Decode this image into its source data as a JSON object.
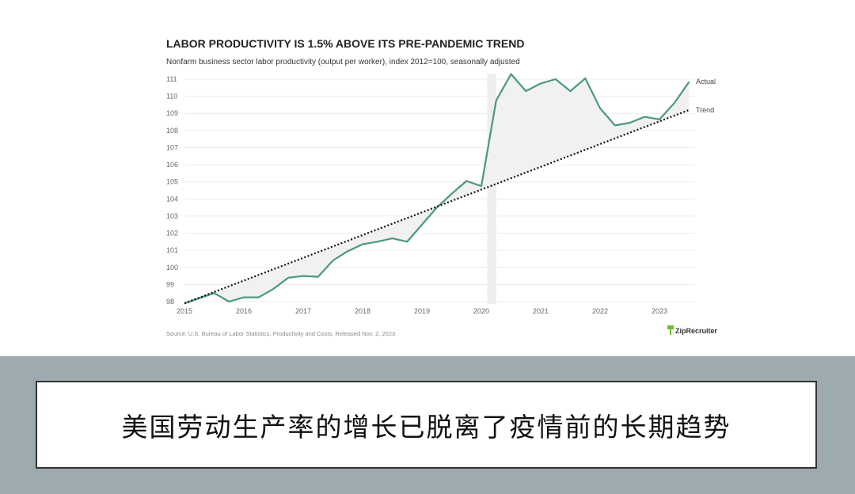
{
  "chart_data": {
    "type": "line",
    "title": "LABOR PRODUCTIVITY IS 1.5% ABOVE ITS PRE-PANDEMIC TREND",
    "subtitle": "Nonfarm business sector labor productivity (output per worker), index 2012=100, seasonally adjusted",
    "ylim": [
      98,
      111
    ],
    "yticks": [
      "98",
      "99",
      "100",
      "101",
      "102",
      "103",
      "104",
      "105",
      "106",
      "107",
      "108",
      "109",
      "110",
      "111"
    ],
    "xlim": [
      2015,
      2023.6
    ],
    "xticks": [
      "2015",
      "2016",
      "2017",
      "2018",
      "2019",
      "2020",
      "2021",
      "2022",
      "2023"
    ],
    "grid": true,
    "shaded_region": [
      2020.1,
      2020.25
    ],
    "series": [
      {
        "name": "Actual",
        "color": "#4a9a7c",
        "style": "solid",
        "x": [
          2015,
          2015.25,
          2015.5,
          2015.75,
          2016,
          2016.25,
          2016.5,
          2016.75,
          2017,
          2017.25,
          2017.5,
          2017.75,
          2018,
          2018.25,
          2018.5,
          2018.75,
          2019,
          2019.25,
          2019.5,
          2019.75,
          2020,
          2020.25,
          2020.5,
          2020.75,
          2021,
          2021.25,
          2021.5,
          2021.75,
          2022,
          2022.25,
          2022.5,
          2022.75,
          2023,
          2023.25,
          2023.5
        ],
        "values": [
          97.9,
          98.2,
          98.5,
          98.0,
          98.25,
          98.25,
          98.75,
          99.4,
          99.5,
          99.45,
          100.4,
          100.95,
          101.35,
          101.5,
          101.7,
          101.5,
          102.5,
          103.5,
          104.3,
          105.05,
          104.75,
          109.75,
          111.3,
          110.3,
          110.75,
          111.0,
          110.3,
          111.05,
          109.3,
          108.3,
          108.45,
          108.8,
          108.65,
          109.6,
          110.85
        ]
      },
      {
        "name": "Trend",
        "color": "#111111",
        "style": "dotted",
        "x": [
          2015,
          2023.5
        ],
        "values": [
          97.9,
          109.2
        ]
      }
    ],
    "source": "Source: U.S. Bureau of Labor Statistics, Productivity and Costs, Released Nov. 2, 2023",
    "logo": "ZipRecruiter"
  },
  "caption": "美国劳动生产率的增长已脱离了疫情前的长期趋势"
}
